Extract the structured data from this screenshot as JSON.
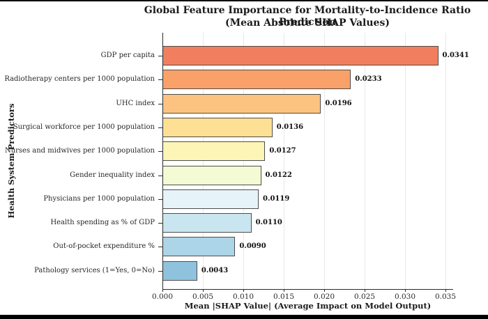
{
  "chart_data": {
    "type": "bar",
    "orientation": "horizontal",
    "title": "Global Feature Importance for Mortality-to-Incidence Ratio Prediction",
    "subtitle": "(Mean Absolute SHAP Values)",
    "xlabel": "Mean |SHAP Value| (Average Impact on Model Output)",
    "ylabel": "Health System Predictors",
    "categories": [
      "GDP per capita",
      "Radiotherapy centers per 1000 population",
      "UHC index",
      "Surgical workforce per 1000 population",
      "Nurses and midwives per 1000 population",
      "Gender inequality index",
      "Physicians per 1000 population",
      "Health spending as % of GDP",
      "Out-of-pocket expenditure %",
      "Pathology services (1=Yes, 0=No)"
    ],
    "values": [
      0.0341,
      0.0233,
      0.0196,
      0.0136,
      0.0127,
      0.0122,
      0.0119,
      0.011,
      0.009,
      0.0043
    ],
    "value_labels": [
      "0.0341",
      "0.0233",
      "0.0196",
      "0.0136",
      "0.0127",
      "0.0122",
      "0.0119",
      "0.0110",
      "0.0090",
      "0.0043"
    ],
    "bar_colors": [
      "#f17e5e",
      "#f9a168",
      "#fcc380",
      "#fee095",
      "#fdf5b5",
      "#f4fad3",
      "#e6f3f8",
      "#c9e5f0",
      "#acd5e8",
      "#8fc2dd"
    ],
    "bar_edge_color": "#4d4d4d",
    "xlim": [
      0,
      0.03595
    ],
    "xticks": [
      0,
      0.005,
      0.01,
      0.015,
      0.02,
      0.025,
      0.03,
      0.035
    ],
    "xtick_labels": [
      "0.000",
      "0.005",
      "0.010",
      "0.015",
      "0.020",
      "0.025",
      "0.030",
      "0.035"
    ],
    "grid": "vertical-only",
    "gridline_color": "#e8e8e8",
    "legend": "none",
    "background": "#ffffff",
    "frame_border_color": "#000000"
  }
}
